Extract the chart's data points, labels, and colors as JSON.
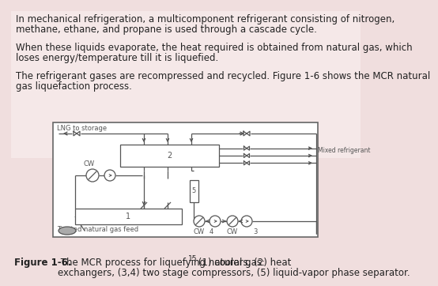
{
  "background_color": "#f0dede",
  "text_color": "#222222",
  "paragraph1_l1": "In mechanical refrigeration, a multicomponent refrigerant consisting of nitrogen,",
  "paragraph1_l2": "methane, ethane, and propane is used through a cascade cycle.",
  "paragraph2_l1": "When these liquids evaporate, the heat required is obtained from natural gas, which",
  "paragraph2_l2": "loses energy/temperature till it is liquefied.",
  "paragraph3_l1": "The refrigerant gases are recompressed and recycled. Figure 1-6 shows the MCR natural",
  "paragraph3_l2": "gas liquefaction process.",
  "caption_bold": "Figure 1-6.",
  "caption_normal": " The MCR process for liquefying natural gas:",
  "caption_super": "15",
  "caption_end_l1": " (1) coolers, (2) heat",
  "caption_end_l2": "exchangers, (3,4) two stage compressors, (5) liquid-vapor phase separator.",
  "diagram_bg": "#ffffff",
  "diagram_border": "#666666",
  "font_size_text": 8.5,
  "font_size_caption": 8.5,
  "font_size_diagram": 6.0,
  "line_color": "#555555",
  "line_lw": 0.9
}
